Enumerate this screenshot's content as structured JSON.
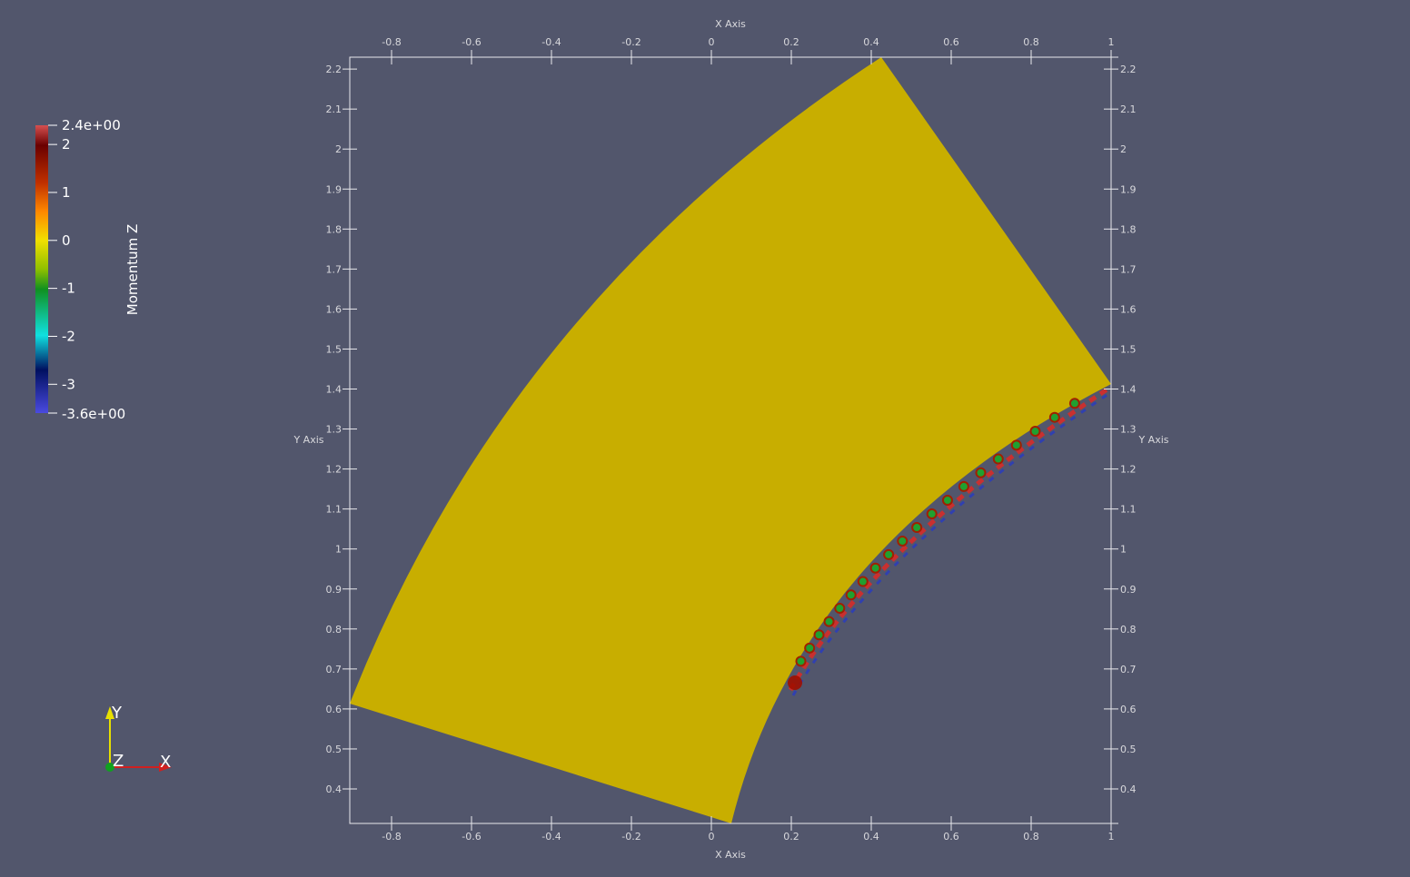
{
  "axes": {
    "x_title": "X Axis",
    "y_title": "Y Axis",
    "xticks": [
      -0.8,
      -0.6,
      -0.4,
      -0.2,
      0,
      0.2,
      0.4,
      0.6,
      0.8,
      1
    ],
    "yticks": [
      0.4,
      0.5,
      0.6,
      0.7,
      0.8,
      0.9,
      1,
      1.1,
      1.2,
      1.3,
      1.4,
      1.5,
      1.6,
      1.7,
      1.8,
      1.9,
      2,
      2.1,
      2.2
    ]
  },
  "colorbar": {
    "title": "Momentum Z",
    "max_label": "2.4e+00",
    "min_label": "-3.6e+00",
    "ticks": [
      2,
      1,
      0,
      -1,
      -2,
      -3
    ]
  },
  "orientation": {
    "y": "Y",
    "z": "Z",
    "x": "X"
  }
}
